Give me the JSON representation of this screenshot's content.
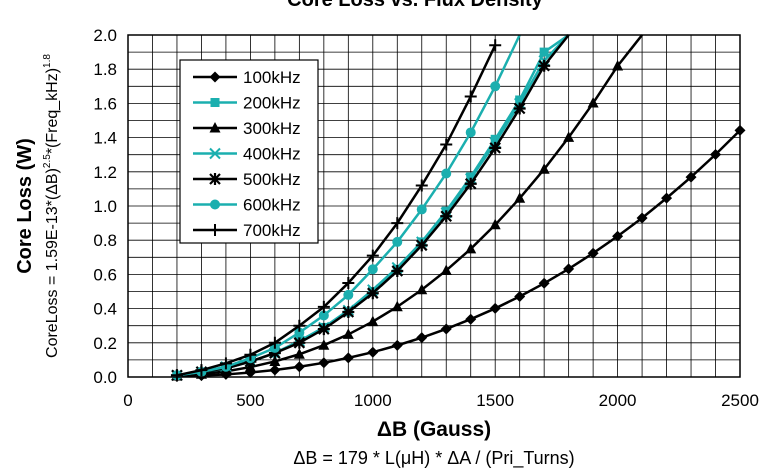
{
  "chart_data": {
    "type": "line",
    "title": "Core Loss vs. Flux Density",
    "xlabel": "ΔB (Gauss)",
    "xlabel_formula": "ΔB = 179 * L(μH) * ΔA / (Pri_Turns)",
    "ylabel": "Core Loss (W)",
    "ylabel_formula": {
      "prefix": "CoreLoss = 1.59E-13*(ΔB)",
      "exp1": "2.5",
      "mid": "*(Freq_kHz)",
      "exp2": "1.8"
    },
    "xlim": [
      0,
      2500
    ],
    "ylim": [
      0,
      2.0
    ],
    "x_ticks": [
      "0",
      "500",
      "1000",
      "1500",
      "2000",
      "2500"
    ],
    "y_ticks": [
      "0.0",
      "0.2",
      "0.4",
      "0.6",
      "0.8",
      "1.0",
      "1.2",
      "1.4",
      "1.6",
      "1.8",
      "2.0"
    ],
    "grid": true,
    "legend_position": "top-left",
    "series": [
      {
        "name": "100kHz",
        "color": "#000000",
        "marker": "diamond",
        "x": [
          200,
          300,
          400,
          500,
          600,
          700,
          800,
          900,
          1000,
          1100,
          1200,
          1300,
          1400,
          1500,
          1600,
          1700,
          1800,
          1900,
          2000,
          2100,
          2200,
          2300,
          2400,
          2500
        ],
        "y": [
          0.003,
          0.008,
          0.015,
          0.026,
          0.041,
          0.06,
          0.083,
          0.112,
          0.145,
          0.185,
          0.23,
          0.281,
          0.338,
          0.401,
          0.471,
          0.548,
          0.632,
          0.724,
          0.823,
          0.93,
          1.046,
          1.169,
          1.301,
          1.442
        ]
      },
      {
        "name": "200kHz",
        "color": "#1BAFAF",
        "marker": "square",
        "x": [
          200,
          300,
          400,
          500,
          600,
          700,
          800,
          900,
          1000,
          1100,
          1200,
          1300,
          1400,
          1500,
          1600,
          1700,
          1800,
          1900,
          2000,
          2100,
          2200,
          2300,
          2400,
          2500
        ],
        "y": [
          0.01,
          0.024,
          0.05,
          0.09,
          0.14,
          0.21,
          0.29,
          0.38,
          0.5,
          0.63,
          0.79,
          0.97,
          1.17,
          1.39,
          1.62,
          1.9,
          2.0,
          2.0,
          2.0,
          2.0,
          2.0,
          2.0,
          2.0,
          2.0
        ]
      },
      {
        "name": "300kHz",
        "color": "#000000",
        "marker": "triangle",
        "x": [
          200,
          300,
          400,
          500,
          600,
          700,
          800,
          900,
          1000,
          1100,
          1200,
          1300,
          1400,
          1500,
          1600,
          1700,
          1800,
          1900,
          2000,
          2100,
          2200,
          2300,
          2400,
          2500
        ],
        "y": [
          0.006,
          0.016,
          0.033,
          0.058,
          0.091,
          0.133,
          0.186,
          0.249,
          0.324,
          0.411,
          0.51,
          0.623,
          0.749,
          0.89,
          1.045,
          1.215,
          1.401,
          1.602,
          1.819,
          2.0,
          2.0,
          2.0,
          2.0,
          2.0
        ]
      },
      {
        "name": "400kHz",
        "color": "#1BAFAF",
        "marker": "x",
        "x": [
          200,
          300,
          400,
          500,
          600,
          700,
          800,
          900,
          1000,
          1100,
          1200,
          1300,
          1400,
          1500,
          1600,
          1700,
          1800,
          1900,
          2000,
          2100,
          2200,
          2300
        ],
        "y": [
          0.01,
          0.03,
          0.06,
          0.09,
          0.14,
          0.21,
          0.29,
          0.39,
          0.51,
          0.64,
          0.79,
          0.96,
          1.16,
          1.37,
          1.6,
          1.85,
          2.0,
          2.0,
          2.0,
          2.0,
          2.0,
          2.0
        ]
      },
      {
        "name": "500kHz",
        "color": "#000000",
        "marker": "star",
        "x": [
          200,
          300,
          400,
          500,
          600,
          700,
          800,
          900,
          1000,
          1100,
          1200,
          1300,
          1400,
          1500,
          1600,
          1700,
          1800,
          1900
        ],
        "y": [
          0.01,
          0.03,
          0.05,
          0.09,
          0.14,
          0.2,
          0.28,
          0.38,
          0.49,
          0.62,
          0.77,
          0.94,
          1.13,
          1.34,
          1.57,
          1.82,
          2.0,
          2.0
        ]
      },
      {
        "name": "600kHz",
        "color": "#1BAFAF",
        "marker": "circle",
        "x": [
          200,
          300,
          400,
          500,
          600,
          700,
          800,
          900,
          1000,
          1100,
          1200,
          1300,
          1400,
          1500,
          1600,
          1700
        ],
        "y": [
          0.01,
          0.03,
          0.06,
          0.11,
          0.17,
          0.26,
          0.36,
          0.48,
          0.63,
          0.79,
          0.98,
          1.19,
          1.43,
          1.7,
          2.0,
          2.0
        ]
      },
      {
        "name": "700kHz",
        "color": "#000000",
        "marker": "plus",
        "x": [
          200,
          300,
          400,
          500,
          600,
          700,
          800,
          900,
          1000,
          1100,
          1200,
          1300,
          1400,
          1500
        ],
        "y": [
          0.01,
          0.04,
          0.08,
          0.13,
          0.2,
          0.3,
          0.41,
          0.55,
          0.71,
          0.9,
          1.12,
          1.36,
          1.64,
          1.94
        ]
      }
    ]
  }
}
